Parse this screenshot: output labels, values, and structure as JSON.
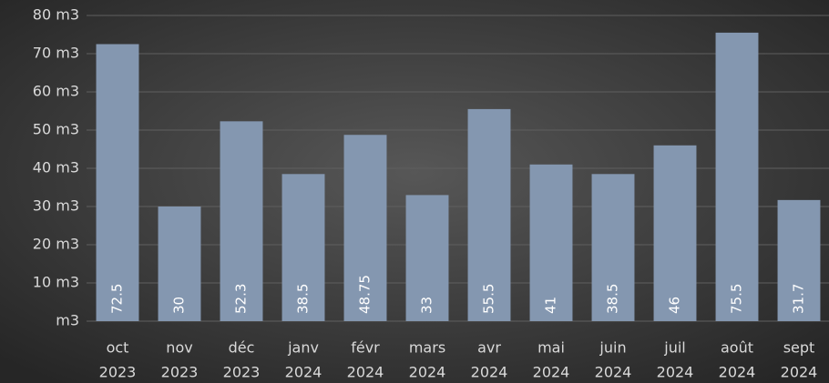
{
  "chart_data": {
    "type": "bar",
    "categories": [
      [
        "oct",
        "2023"
      ],
      [
        "nov",
        "2023"
      ],
      [
        "déc",
        "2023"
      ],
      [
        "janv",
        "2024"
      ],
      [
        "févr",
        "2024"
      ],
      [
        "mars",
        "2024"
      ],
      [
        "avr",
        "2024"
      ],
      [
        "mai",
        "2024"
      ],
      [
        "juin",
        "2024"
      ],
      [
        "juil",
        "2024"
      ],
      [
        "août",
        "2024"
      ],
      [
        "sept",
        "2024"
      ]
    ],
    "values": [
      72.5,
      30,
      52.3,
      38.5,
      48.75,
      33,
      55.5,
      41,
      38.5,
      46,
      75.5,
      31.7
    ],
    "color": "#8497b0",
    "ylim": [
      0,
      80
    ],
    "yticks": [
      {
        "value": 0,
        "label": "m3"
      },
      {
        "value": 10,
        "label": "10 m3"
      },
      {
        "value": 20,
        "label": "20 m3"
      },
      {
        "value": 30,
        "label": "30 m3"
      },
      {
        "value": 40,
        "label": "40 m3"
      },
      {
        "value": 50,
        "label": "50 m3"
      },
      {
        "value": 60,
        "label": "60 m3"
      },
      {
        "value": 70,
        "label": "70 m3"
      },
      {
        "value": 80,
        "label": "80 m3"
      }
    ],
    "grid": true
  }
}
